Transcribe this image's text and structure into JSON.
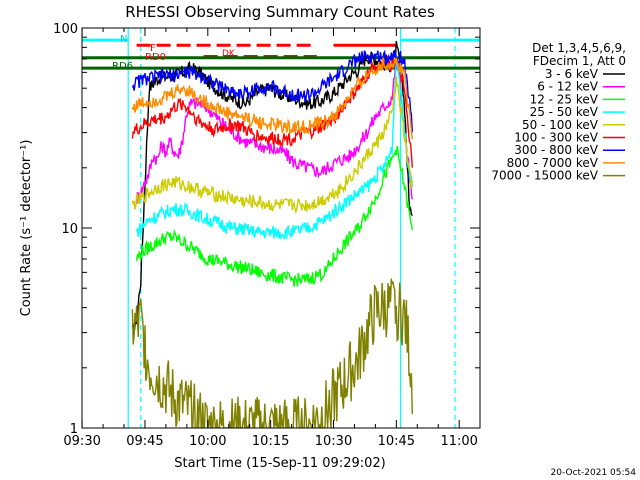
{
  "chart_data": {
    "type": "line",
    "title": "RHESSI Observing Summary Count Rates",
    "xlabel": "Start Time (15-Sep-11 09:29:02)",
    "ylabel": "Count Rate (s⁻¹ detector⁻¹)",
    "yscale": "log",
    "ylim": [
      1,
      100
    ],
    "xlim_minutes": [
      -0.03,
      94.97
    ],
    "xticks": [
      {
        "label": "09:30",
        "min": 0
      },
      {
        "label": "09:45",
        "min": 15
      },
      {
        "label": "10:00",
        "min": 30
      },
      {
        "label": "10:15",
        "min": 45
      },
      {
        "label": "10:30",
        "min": 60
      },
      {
        "label": "10:45",
        "min": 75
      },
      {
        "label": "11:00",
        "min": 90
      }
    ],
    "yticks": [
      {
        "label": "1",
        "value": 1
      },
      {
        "label": "10",
        "value": 10
      },
      {
        "label": "100",
        "value": 100
      }
    ],
    "legend_header": [
      "Det 1,3,4,5,6,9,",
      "FDecim 1, Att 0"
    ],
    "legend_position": "right",
    "timestamp": "20-Oct-2021 05:54",
    "flag_labels": {
      "n": "N",
      "f": "F",
      "rd0": "RD0",
      "rd6": "RD6",
      "dk": "DK"
    },
    "series": [
      {
        "name": "3 - 6 keV",
        "color": "#000000",
        "x": [
          12,
          13,
          14,
          16,
          18,
          20,
          22,
          24,
          26,
          28,
          30,
          33,
          36,
          39,
          42,
          45,
          48,
          51,
          54,
          57,
          60,
          62,
          64,
          66,
          67,
          68,
          70,
          72,
          74,
          75,
          76,
          77,
          78,
          79
        ],
        "y": [
          3,
          3.5,
          5.5,
          50,
          56,
          57,
          58,
          60,
          63,
          60,
          54,
          48,
          44,
          42,
          48,
          50,
          46,
          44,
          42,
          43,
          47,
          52,
          58,
          62,
          68,
          72,
          70,
          66,
          65,
          80,
          65,
          40,
          14,
          10
        ]
      },
      {
        "name": "6 - 12 keV",
        "color": "#ff00ff",
        "x": [
          13,
          14,
          15,
          16,
          17,
          18,
          19,
          20,
          21,
          22,
          23,
          24,
          25,
          26,
          28,
          30,
          33,
          36,
          39,
          42,
          45,
          48,
          51,
          54,
          57,
          60,
          62,
          64,
          66,
          68,
          70,
          72,
          74,
          75,
          76,
          77,
          78,
          79
        ],
        "y": [
          14,
          15,
          17,
          19,
          23,
          22,
          26,
          24,
          27,
          24,
          23,
          28,
          38,
          42,
          42,
          40,
          34,
          30,
          27,
          26,
          25,
          24,
          21,
          20,
          19,
          21,
          22,
          23,
          26,
          30,
          36,
          40,
          45,
          70,
          52,
          30,
          20,
          12
        ]
      },
      {
        "name": "12 - 25 keV",
        "color": "#00ff00",
        "x": [
          13,
          14,
          16,
          18,
          20,
          22,
          24,
          26,
          28,
          30,
          33,
          36,
          39,
          42,
          45,
          48,
          51,
          54,
          56,
          58,
          60,
          62,
          64,
          66,
          68,
          70,
          72,
          74,
          75,
          76,
          77,
          78,
          79
        ],
        "y": [
          7,
          7.5,
          8,
          8.5,
          9,
          9,
          8.5,
          8,
          7.5,
          7,
          6.8,
          6.5,
          6.3,
          6,
          5.8,
          5.6,
          5.5,
          5.5,
          5.8,
          6,
          7,
          8,
          9,
          10,
          12,
          14,
          18,
          22,
          25,
          20,
          16,
          12,
          9
        ]
      },
      {
        "name": "25 - 50 keV",
        "color": "#00ffff",
        "x": [
          13,
          14,
          16,
          18,
          20,
          22,
          24,
          26,
          28,
          30,
          33,
          36,
          39,
          42,
          45,
          48,
          51,
          54,
          56,
          58,
          60,
          62,
          64,
          66,
          68,
          70,
          72,
          74,
          75,
          76,
          77,
          78,
          79
        ],
        "y": [
          9.5,
          10,
          11,
          11.5,
          12,
          12.5,
          12.3,
          12,
          11.5,
          11,
          10.5,
          10,
          9.8,
          9.5,
          9.5,
          9.5,
          9.6,
          10,
          10.5,
          11,
          12,
          13,
          14,
          15,
          16,
          18,
          20,
          25,
          75,
          50,
          30,
          20,
          15
        ]
      },
      {
        "name": "50 - 100 keV",
        "color": "#cccc00",
        "x": [
          12,
          13,
          14,
          16,
          18,
          20,
          22,
          24,
          26,
          28,
          30,
          33,
          36,
          39,
          42,
          45,
          48,
          51,
          54,
          56,
          58,
          60,
          62,
          64,
          66,
          68,
          70,
          72,
          74,
          75,
          76,
          77,
          78,
          79
        ],
        "y": [
          13,
          13.5,
          14,
          15,
          16,
          16.5,
          17,
          16.5,
          16,
          15.5,
          15,
          14.5,
          14,
          13.5,
          13.5,
          13,
          13,
          13,
          13,
          13.5,
          14,
          15,
          16,
          18,
          20,
          23,
          26,
          30,
          38,
          55,
          40,
          28,
          20,
          15
        ]
      },
      {
        "name": "100 - 300 keV",
        "color": "#ff0000",
        "x": [
          12,
          13,
          14,
          16,
          18,
          20,
          22,
          24,
          26,
          28,
          30,
          32,
          34,
          36,
          38,
          40,
          42,
          44,
          46,
          48,
          50,
          52,
          54,
          56,
          58,
          60,
          62,
          64,
          66,
          68,
          70,
          72,
          74,
          75,
          76,
          77,
          78,
          79
        ],
        "y": [
          30,
          31,
          32,
          34,
          35,
          36,
          40,
          42,
          38,
          34,
          32,
          31,
          32,
          33,
          32,
          30,
          29,
          28,
          28,
          28,
          28,
          29,
          30,
          31,
          33,
          35,
          40,
          45,
          50,
          58,
          65,
          68,
          65,
          70,
          60,
          50,
          30,
          20
        ]
      },
      {
        "name": "300 - 800 keV",
        "color": "#0000ff",
        "x": [
          12,
          13,
          14,
          16,
          18,
          20,
          22,
          24,
          26,
          28,
          30,
          32,
          34,
          36,
          38,
          40,
          42,
          44,
          46,
          48,
          50,
          52,
          54,
          56,
          58,
          60,
          62,
          64,
          66,
          68,
          70,
          72,
          74,
          75,
          76,
          77,
          78,
          79
        ],
        "y": [
          52,
          53,
          55,
          56,
          57,
          58,
          58,
          60,
          60,
          58,
          56,
          52,
          50,
          48,
          47,
          48,
          50,
          51,
          50,
          48,
          47,
          46,
          46,
          48,
          52,
          56,
          60,
          66,
          70,
          72,
          72,
          72,
          72,
          74,
          72,
          65,
          45,
          30
        ]
      },
      {
        "name": "800 - 7000 keV",
        "color": "#ff8c00",
        "x": [
          12,
          13,
          14,
          16,
          18,
          20,
          22,
          24,
          26,
          28,
          30,
          32,
          34,
          36,
          38,
          40,
          42,
          44,
          46,
          48,
          50,
          52,
          54,
          56,
          58,
          60,
          62,
          64,
          66,
          68,
          70,
          72,
          74,
          75,
          76,
          77,
          78,
          79
        ],
        "y": [
          40,
          41,
          42,
          43,
          44,
          45,
          48,
          50,
          48,
          44,
          42,
          40,
          38,
          37,
          36,
          35,
          34,
          33,
          33,
          32,
          32,
          32,
          32,
          33,
          34,
          36,
          40,
          46,
          52,
          58,
          63,
          66,
          66,
          67,
          64,
          58,
          40,
          28
        ]
      },
      {
        "name": "7000 - 15000 keV",
        "color": "#808000",
        "x": [
          12,
          13,
          14,
          16,
          18,
          20,
          22,
          24,
          26,
          28,
          30,
          33,
          36,
          39,
          42,
          45,
          48,
          51,
          54,
          56,
          58,
          60,
          62,
          64,
          66,
          67,
          68,
          70,
          72,
          74,
          75,
          76,
          77,
          78,
          79
        ],
        "y": [
          3.2,
          3.2,
          3.4,
          2,
          1.8,
          1.6,
          1.4,
          1.3,
          1.2,
          1.1,
          1,
          1,
          1,
          1,
          1,
          1,
          1,
          1,
          1,
          1.1,
          1.2,
          1.4,
          1.6,
          1.9,
          2.2,
          2.6,
          3,
          3.8,
          4,
          4,
          4,
          3.8,
          3.5,
          2.5,
          1.5
        ]
      }
    ],
    "overlays": [
      {
        "kind": "vline",
        "min": 11,
        "color": "#00ffff",
        "dash": false
      },
      {
        "kind": "vline",
        "min": 14,
        "color": "#00ffff",
        "dash": true
      },
      {
        "kind": "vline",
        "min": 76,
        "color": "#00ffff",
        "dash": false
      },
      {
        "kind": "vline",
        "min": 89,
        "color": "#00ffff",
        "dash": true
      },
      {
        "kind": "hseg",
        "from": 0,
        "to": 11,
        "y": 87,
        "color": "#00ffff"
      },
      {
        "kind": "hseg",
        "from": 76,
        "to": 95,
        "y": 87,
        "color": "#00ffff"
      },
      {
        "kind": "hseg",
        "from": 13,
        "to": 55,
        "y": 82,
        "color": "#ff0000",
        "dash": true
      },
      {
        "kind": "hseg",
        "from": 60,
        "to": 75,
        "y": 82,
        "color": "#ff0000"
      },
      {
        "kind": "hseg",
        "from": 29,
        "to": 56,
        "y": 72,
        "color": "#ff0000",
        "dash": true
      },
      {
        "kind": "hseg",
        "from": 0,
        "to": 95,
        "y": 63,
        "color": "#006400"
      },
      {
        "kind": "hseg",
        "from": 0,
        "to": 95,
        "y": 71,
        "color": "#006400"
      }
    ]
  }
}
